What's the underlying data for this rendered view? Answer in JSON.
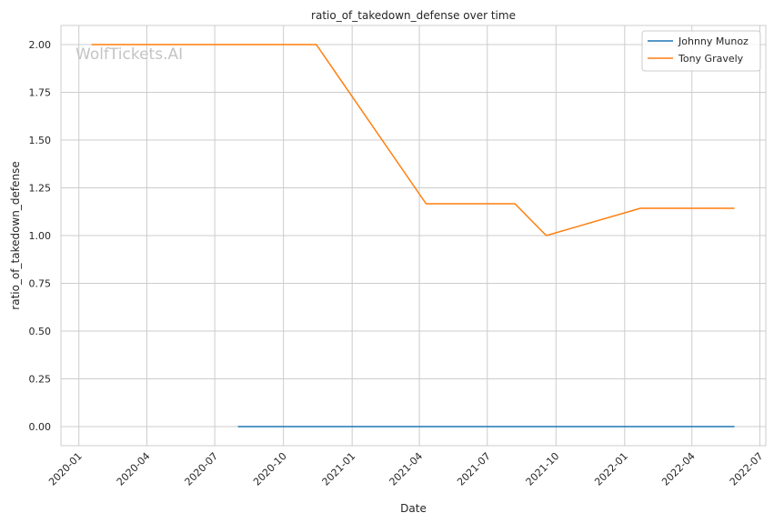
{
  "chart_data": {
    "type": "line",
    "title": "ratio_of_takedown_defense over time",
    "xlabel": "Date",
    "ylabel": "ratio_of_takedown_defense",
    "watermark": "WolfTickets.AI",
    "x_axis_type": "date",
    "xlim": [
      "2019-12-08",
      "2022-07-09"
    ],
    "ylim": [
      -0.1,
      2.1
    ],
    "xticks": [
      {
        "date": "2020-01-01",
        "label": "2020-01"
      },
      {
        "date": "2020-04-01",
        "label": "2020-04"
      },
      {
        "date": "2020-07-01",
        "label": "2020-07"
      },
      {
        "date": "2020-10-01",
        "label": "2020-10"
      },
      {
        "date": "2021-01-01",
        "label": "2021-01"
      },
      {
        "date": "2021-04-01",
        "label": "2021-04"
      },
      {
        "date": "2021-07-01",
        "label": "2021-07"
      },
      {
        "date": "2021-10-01",
        "label": "2021-10"
      },
      {
        "date": "2022-01-01",
        "label": "2022-01"
      },
      {
        "date": "2022-04-01",
        "label": "2022-04"
      },
      {
        "date": "2022-07-01",
        "label": "2022-07"
      }
    ],
    "yticks": [
      {
        "value": 0.0,
        "label": "0.00"
      },
      {
        "value": 0.25,
        "label": "0.25"
      },
      {
        "value": 0.5,
        "label": "0.50"
      },
      {
        "value": 0.75,
        "label": "0.75"
      },
      {
        "value": 1.0,
        "label": "1.00"
      },
      {
        "value": 1.25,
        "label": "1.25"
      },
      {
        "value": 1.5,
        "label": "1.50"
      },
      {
        "value": 1.75,
        "label": "1.75"
      },
      {
        "value": 2.0,
        "label": "2.00"
      }
    ],
    "grid": true,
    "legend_position": "top-right",
    "series": [
      {
        "name": "Johnny Munoz",
        "color": "#1f77b4",
        "points": [
          {
            "x": "2020-08-01",
            "y": 0.0
          },
          {
            "x": "2022-05-28",
            "y": 0.0
          }
        ]
      },
      {
        "name": "Tony Gravely",
        "color": "#ff7f0e",
        "points": [
          {
            "x": "2020-01-18",
            "y": 2.0
          },
          {
            "x": "2020-11-14",
            "y": 2.0
          },
          {
            "x": "2021-04-10",
            "y": 1.1667
          },
          {
            "x": "2021-08-07",
            "y": 1.1667
          },
          {
            "x": "2021-09-18",
            "y": 1.0
          },
          {
            "x": "2022-01-22",
            "y": 1.1429
          },
          {
            "x": "2022-05-28",
            "y": 1.1429
          }
        ]
      }
    ]
  }
}
